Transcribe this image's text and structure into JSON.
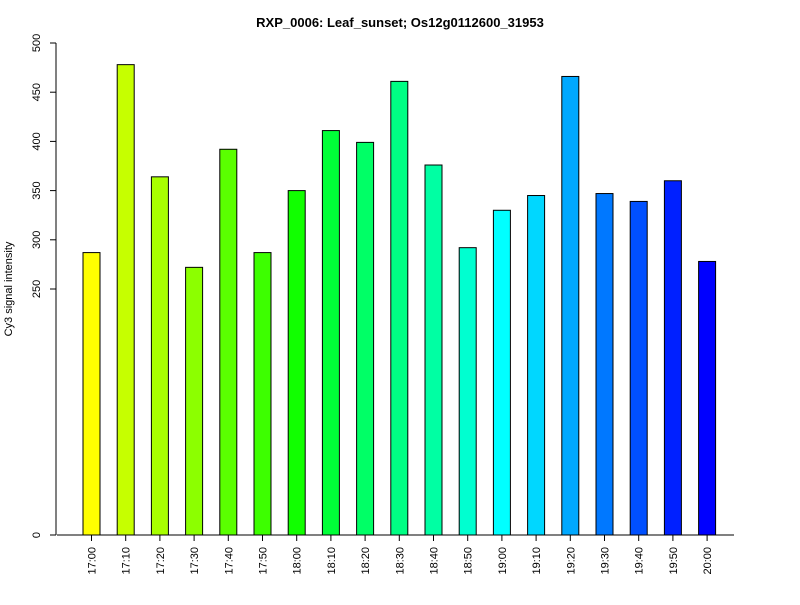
{
  "chart_data": {
    "type": "bar",
    "title": "RXP_0006: Leaf_sunset; Os12g0112600_31953",
    "xlabel": "",
    "ylabel": "Cy3 signal intensity",
    "ylim": [
      0,
      500
    ],
    "yticks": [
      0,
      250,
      300,
      350,
      400,
      450,
      500
    ],
    "grid": false,
    "legend": "none",
    "categories": [
      "17:00",
      "17:10",
      "17:20",
      "17:30",
      "17:40",
      "17:50",
      "18:00",
      "18:10",
      "18:20",
      "18:30",
      "18:40",
      "18:50",
      "19:00",
      "19:10",
      "19:20",
      "19:30",
      "19:40",
      "19:50",
      "20:00"
    ],
    "values": [
      287,
      478,
      364,
      272,
      392,
      287,
      350,
      411,
      399,
      461,
      376,
      292,
      330,
      345,
      466,
      347,
      339,
      360,
      278
    ],
    "colors": [
      "#ffff00",
      "#c6ff00",
      "#a8ff00",
      "#8cff00",
      "#5aff00",
      "#3dff00",
      "#11ff00",
      "#00ff38",
      "#00ff66",
      "#00ff84",
      "#00ffa3",
      "#00ffd0",
      "#00ffff",
      "#00d7ff",
      "#00a8ff",
      "#0078ff",
      "#0050ff",
      "#0020ff",
      "#0000ff"
    ]
  }
}
